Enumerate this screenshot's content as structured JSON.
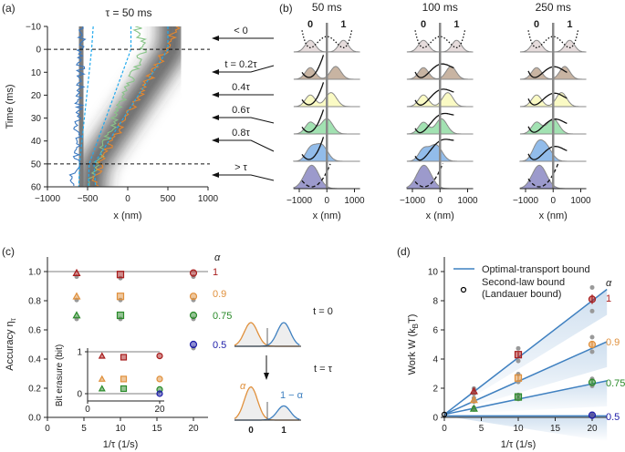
{
  "panel_labels": {
    "a": "(a)",
    "b": "(b)",
    "c": "(c)",
    "d": "(d)"
  },
  "colors": {
    "alpha_1": "#a81c1c",
    "alpha_0.9": "#e0903c",
    "alpha_0.75": "#2a8a2a",
    "alpha_0.5": "#1c1ca8",
    "bound_line": "#3f80c0",
    "dashed_mean": "#22aaee",
    "traj_blue": "#3a78c0",
    "traj_green": "#88c488",
    "traj_orange": "#e8882c",
    "rows": [
      "#e6dcdc",
      "#c8b4a2",
      "#fafac4",
      "#a2e2b2",
      "#92bcea",
      "#9c9acc"
    ]
  },
  "chart_data": [
    {
      "panel": "a",
      "type": "heatmap",
      "title": "τ = 50 ms",
      "xlabel": "x (nm)",
      "ylabel": "Time (ms)",
      "xlim": [
        -1000,
        1000
      ],
      "ylim": [
        60,
        -10
      ],
      "xticks": [
        "−1000",
        "−500",
        "0",
        "500",
        "1000"
      ],
      "yticks": [
        "−10",
        "0",
        "10",
        "20",
        "30",
        "40",
        "50",
        "60"
      ],
      "hlines_time": [
        0,
        50
      ],
      "mean_paths": [
        {
          "t": [
            -10,
            0,
            50,
            60
          ],
          "x": [
            -430,
            -450,
            -600,
            -610
          ]
        },
        {
          "t": [
            -10,
            0,
            50,
            60
          ],
          "x": [
            40,
            40,
            -480,
            -490
          ]
        },
        {
          "t": [
            -10,
            0,
            50,
            60
          ],
          "x": [
            500,
            500,
            -420,
            -400
          ]
        }
      ],
      "trajectory_colors": [
        "traj_blue",
        "traj_green",
        "traj_orange"
      ],
      "time_markers": [
        "< 0",
        "t = 0.2τ",
        "0.4τ",
        "0.6τ",
        "0.8τ",
        "> τ"
      ]
    },
    {
      "panel": "b",
      "type": "area",
      "xlabel": "x (nm)",
      "xticks": [
        "−1000",
        "0",
        "1000"
      ],
      "state_labels": [
        "0",
        "1"
      ],
      "subplots": [
        {
          "title": "50 ms",
          "right_peak": [
            600,
            320,
            150,
            0,
            -200
          ],
          "final_peak": -550
        },
        {
          "title": "100 ms",
          "right_peak": [
            600,
            400,
            280,
            50,
            -150
          ],
          "final_peak": -580
        },
        {
          "title": "250 ms",
          "right_peak": [
            600,
            420,
            300,
            0,
            -300
          ],
          "final_peak": -500
        }
      ]
    },
    {
      "panel": "c",
      "type": "scatter",
      "xlabel": "1/τ (1/s)",
      "ylabel": "Accuracy η",
      "ylabel_sub": "τ",
      "xlim": [
        0,
        22
      ],
      "ylim": [
        0,
        1.1
      ],
      "xticks": [
        "0",
        "5",
        "10",
        "15",
        "20"
      ],
      "yticks": [
        "0.0",
        "0.2",
        "0.4",
        "0.6",
        "0.8",
        "1.0"
      ],
      "legend_title": "α",
      "series": [
        {
          "name": "1",
          "color": "alpha_1",
          "x": [
            4,
            10,
            20
          ],
          "y": [
            0.99,
            0.98,
            0.99
          ]
        },
        {
          "name": "0.9",
          "color": "alpha_0.9",
          "x": [
            4,
            10,
            20
          ],
          "y": [
            0.83,
            0.83,
            0.83
          ]
        },
        {
          "name": "0.75",
          "color": "alpha_0.75",
          "x": [
            4,
            10,
            20
          ],
          "y": [
            0.7,
            0.7,
            0.7
          ]
        },
        {
          "name": "0.5",
          "color": "alpha_0.5",
          "x": [
            20
          ],
          "y": [
            0.5
          ]
        }
      ],
      "inset": {
        "ylabel": "Bit erasure (bit)",
        "xticks": [
          "0",
          "20"
        ],
        "yticks": [
          "0",
          "1"
        ],
        "series": [
          {
            "color": "alpha_1",
            "x": [
              4,
              10,
              20
            ],
            "y": [
              0.9,
              0.87,
              0.9
            ]
          },
          {
            "color": "alpha_0.9",
            "x": [
              4,
              10,
              20
            ],
            "y": [
              0.35,
              0.35,
              0.35
            ]
          },
          {
            "color": "alpha_0.75",
            "x": [
              4,
              10,
              20
            ],
            "y": [
              0.12,
              0.12,
              0.1
            ]
          },
          {
            "color": "alpha_0.5",
            "x": [
              20
            ],
            "y": [
              0.0
            ]
          }
        ]
      },
      "schematic": {
        "t0_label": "t = 0",
        "ttau_label": "t = τ",
        "alpha_label": "α",
        "one_minus_alpha_label": "1 − α",
        "xticks": [
          "0",
          "1"
        ]
      }
    },
    {
      "panel": "d",
      "type": "line",
      "xlabel": "1/τ (1/s)",
      "ylabel": "Work W (k",
      "ylabel_sub": "B",
      "ylabel_end": "T)",
      "xlim": [
        0,
        22
      ],
      "ylim": [
        0,
        11
      ],
      "xticks": [
        "0",
        "5",
        "10",
        "15",
        "20"
      ],
      "yticks": [
        "0",
        "2",
        "4",
        "6",
        "8",
        "10"
      ],
      "legend": {
        "line": "Optimal-transport bound",
        "marker_line1": "Second-law bound",
        "marker_line2": "(Landauer bound)"
      },
      "legend_title": "α",
      "bounds": [
        {
          "name": "1",
          "slope": 0.39,
          "intercept": 0.2
        },
        {
          "name": "0.9",
          "slope": 0.227,
          "intercept": 0.2
        },
        {
          "name": "0.75",
          "slope": 0.105,
          "intercept": 0.2
        },
        {
          "name": "0.5",
          "slope": 0.0,
          "intercept": 0.1
        }
      ],
      "series": [
        {
          "name": "1",
          "color": "alpha_1",
          "x": [
            4,
            10,
            20
          ],
          "y": [
            1.8,
            4.3,
            8.1
          ]
        },
        {
          "name": "0.9",
          "color": "alpha_0.9",
          "x": [
            4,
            10,
            20
          ],
          "y": [
            1.2,
            2.7,
            5.0
          ]
        },
        {
          "name": "0.75",
          "color": "alpha_0.75",
          "x": [
            4,
            10,
            20
          ],
          "y": [
            0.6,
            1.4,
            2.4
          ]
        },
        {
          "name": "0.5",
          "color": "alpha_0.5",
          "x": [
            20
          ],
          "y": [
            0.15
          ]
        }
      ],
      "landauer_points": {
        "x": [
          0
        ],
        "y": [
          0.2
        ]
      }
    }
  ]
}
